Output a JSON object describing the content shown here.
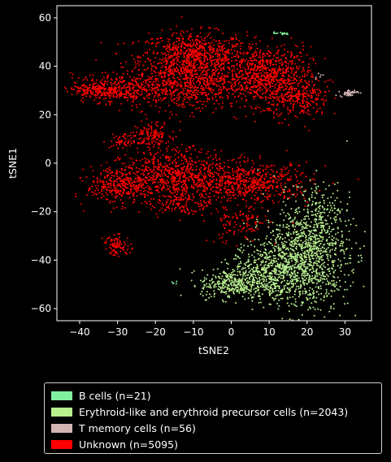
{
  "chart_data": {
    "type": "scatter",
    "xlabel": "tSNE2",
    "ylabel": "tSNE1",
    "xlim": [
      -46,
      37
    ],
    "ylim": [
      -65,
      65
    ],
    "xticks": [
      -40,
      -30,
      -20,
      -10,
      0,
      10,
      20,
      30
    ],
    "yticks": [
      -60,
      -40,
      -20,
      0,
      20,
      40,
      60
    ],
    "xtick_labels": [
      "−40",
      "−30",
      "−20",
      "−10",
      "0",
      "10",
      "20",
      "30"
    ],
    "ytick_labels": [
      "−60",
      "−40",
      "−20",
      "0",
      "20",
      "40",
      "60"
    ],
    "grid": false,
    "legend_position": "below",
    "series": [
      {
        "name": "B cells (n=21)",
        "color": "#7ff0a0",
        "count": 21,
        "clusters": [
          {
            "cx": 13,
            "cy": 53.5,
            "sx": 1.2,
            "sy": 0.3,
            "n": 16
          },
          {
            "cx": -15,
            "cy": -49.5,
            "sx": 1.0,
            "sy": 0.5,
            "n": 5
          }
        ]
      },
      {
        "name": "Erythroid-like and erythroid precursor cells (n=2043)",
        "color": "#b8ee8e",
        "count": 2043,
        "clusters": [
          {
            "cx": 20,
            "cy": -38,
            "sx": 5.5,
            "sy": 11,
            "n": 1100
          },
          {
            "cx": 10,
            "cy": -45,
            "sx": 5,
            "sy": 6,
            "n": 550
          },
          {
            "cx": 0,
            "cy": -50,
            "sx": 4,
            "sy": 3,
            "n": 300
          },
          {
            "cx": 24,
            "cy": -18,
            "sx": 3,
            "sy": 6,
            "n": 93
          }
        ]
      },
      {
        "name": "T memory cells (n=56)",
        "color": "#d3b5b5",
        "count": 56,
        "clusters": [
          {
            "cx": 31,
            "cy": 29,
            "sx": 1.2,
            "sy": 0.7,
            "n": 50
          },
          {
            "cx": 23,
            "cy": 36.5,
            "sx": 0.7,
            "sy": 0.6,
            "n": 6
          }
        ]
      },
      {
        "name": "Unknown (n=5095)",
        "color": "#ff0000",
        "count": 5095,
        "clusters": [
          {
            "cx": -10,
            "cy": 44,
            "sx": 7,
            "sy": 5,
            "n": 800
          },
          {
            "cx": 9,
            "cy": 36,
            "sx": 6,
            "sy": 6,
            "n": 800
          },
          {
            "cx": -12,
            "cy": 32,
            "sx": 7,
            "sy": 5,
            "n": 600
          },
          {
            "cx": -30,
            "cy": 31,
            "sx": 6,
            "sy": 3,
            "n": 350
          },
          {
            "cx": -35,
            "cy": 30,
            "sx": 3,
            "sy": 1.5,
            "n": 120
          },
          {
            "cx": 18,
            "cy": 26,
            "sx": 4,
            "sy": 4,
            "n": 250
          },
          {
            "cx": -21,
            "cy": 12,
            "sx": 2.5,
            "sy": 2.5,
            "n": 130
          },
          {
            "cx": -28,
            "cy": 9,
            "sx": 2,
            "sy": 1.5,
            "n": 60
          },
          {
            "cx": -30,
            "cy": -9,
            "sx": 4,
            "sy": 4,
            "n": 320
          },
          {
            "cx": -15,
            "cy": -6,
            "sx": 7,
            "sy": 6,
            "n": 800
          },
          {
            "cx": 5,
            "cy": -8,
            "sx": 8,
            "sy": 4,
            "n": 600
          },
          {
            "cx": 2,
            "cy": -25,
            "sx": 4,
            "sy": 4,
            "n": 120
          },
          {
            "cx": -30,
            "cy": -34,
            "sx": 1.8,
            "sy": 2,
            "n": 90
          },
          {
            "cx": -13,
            "cy": -17,
            "sx": 3,
            "sy": 2,
            "n": 55
          }
        ]
      }
    ]
  }
}
